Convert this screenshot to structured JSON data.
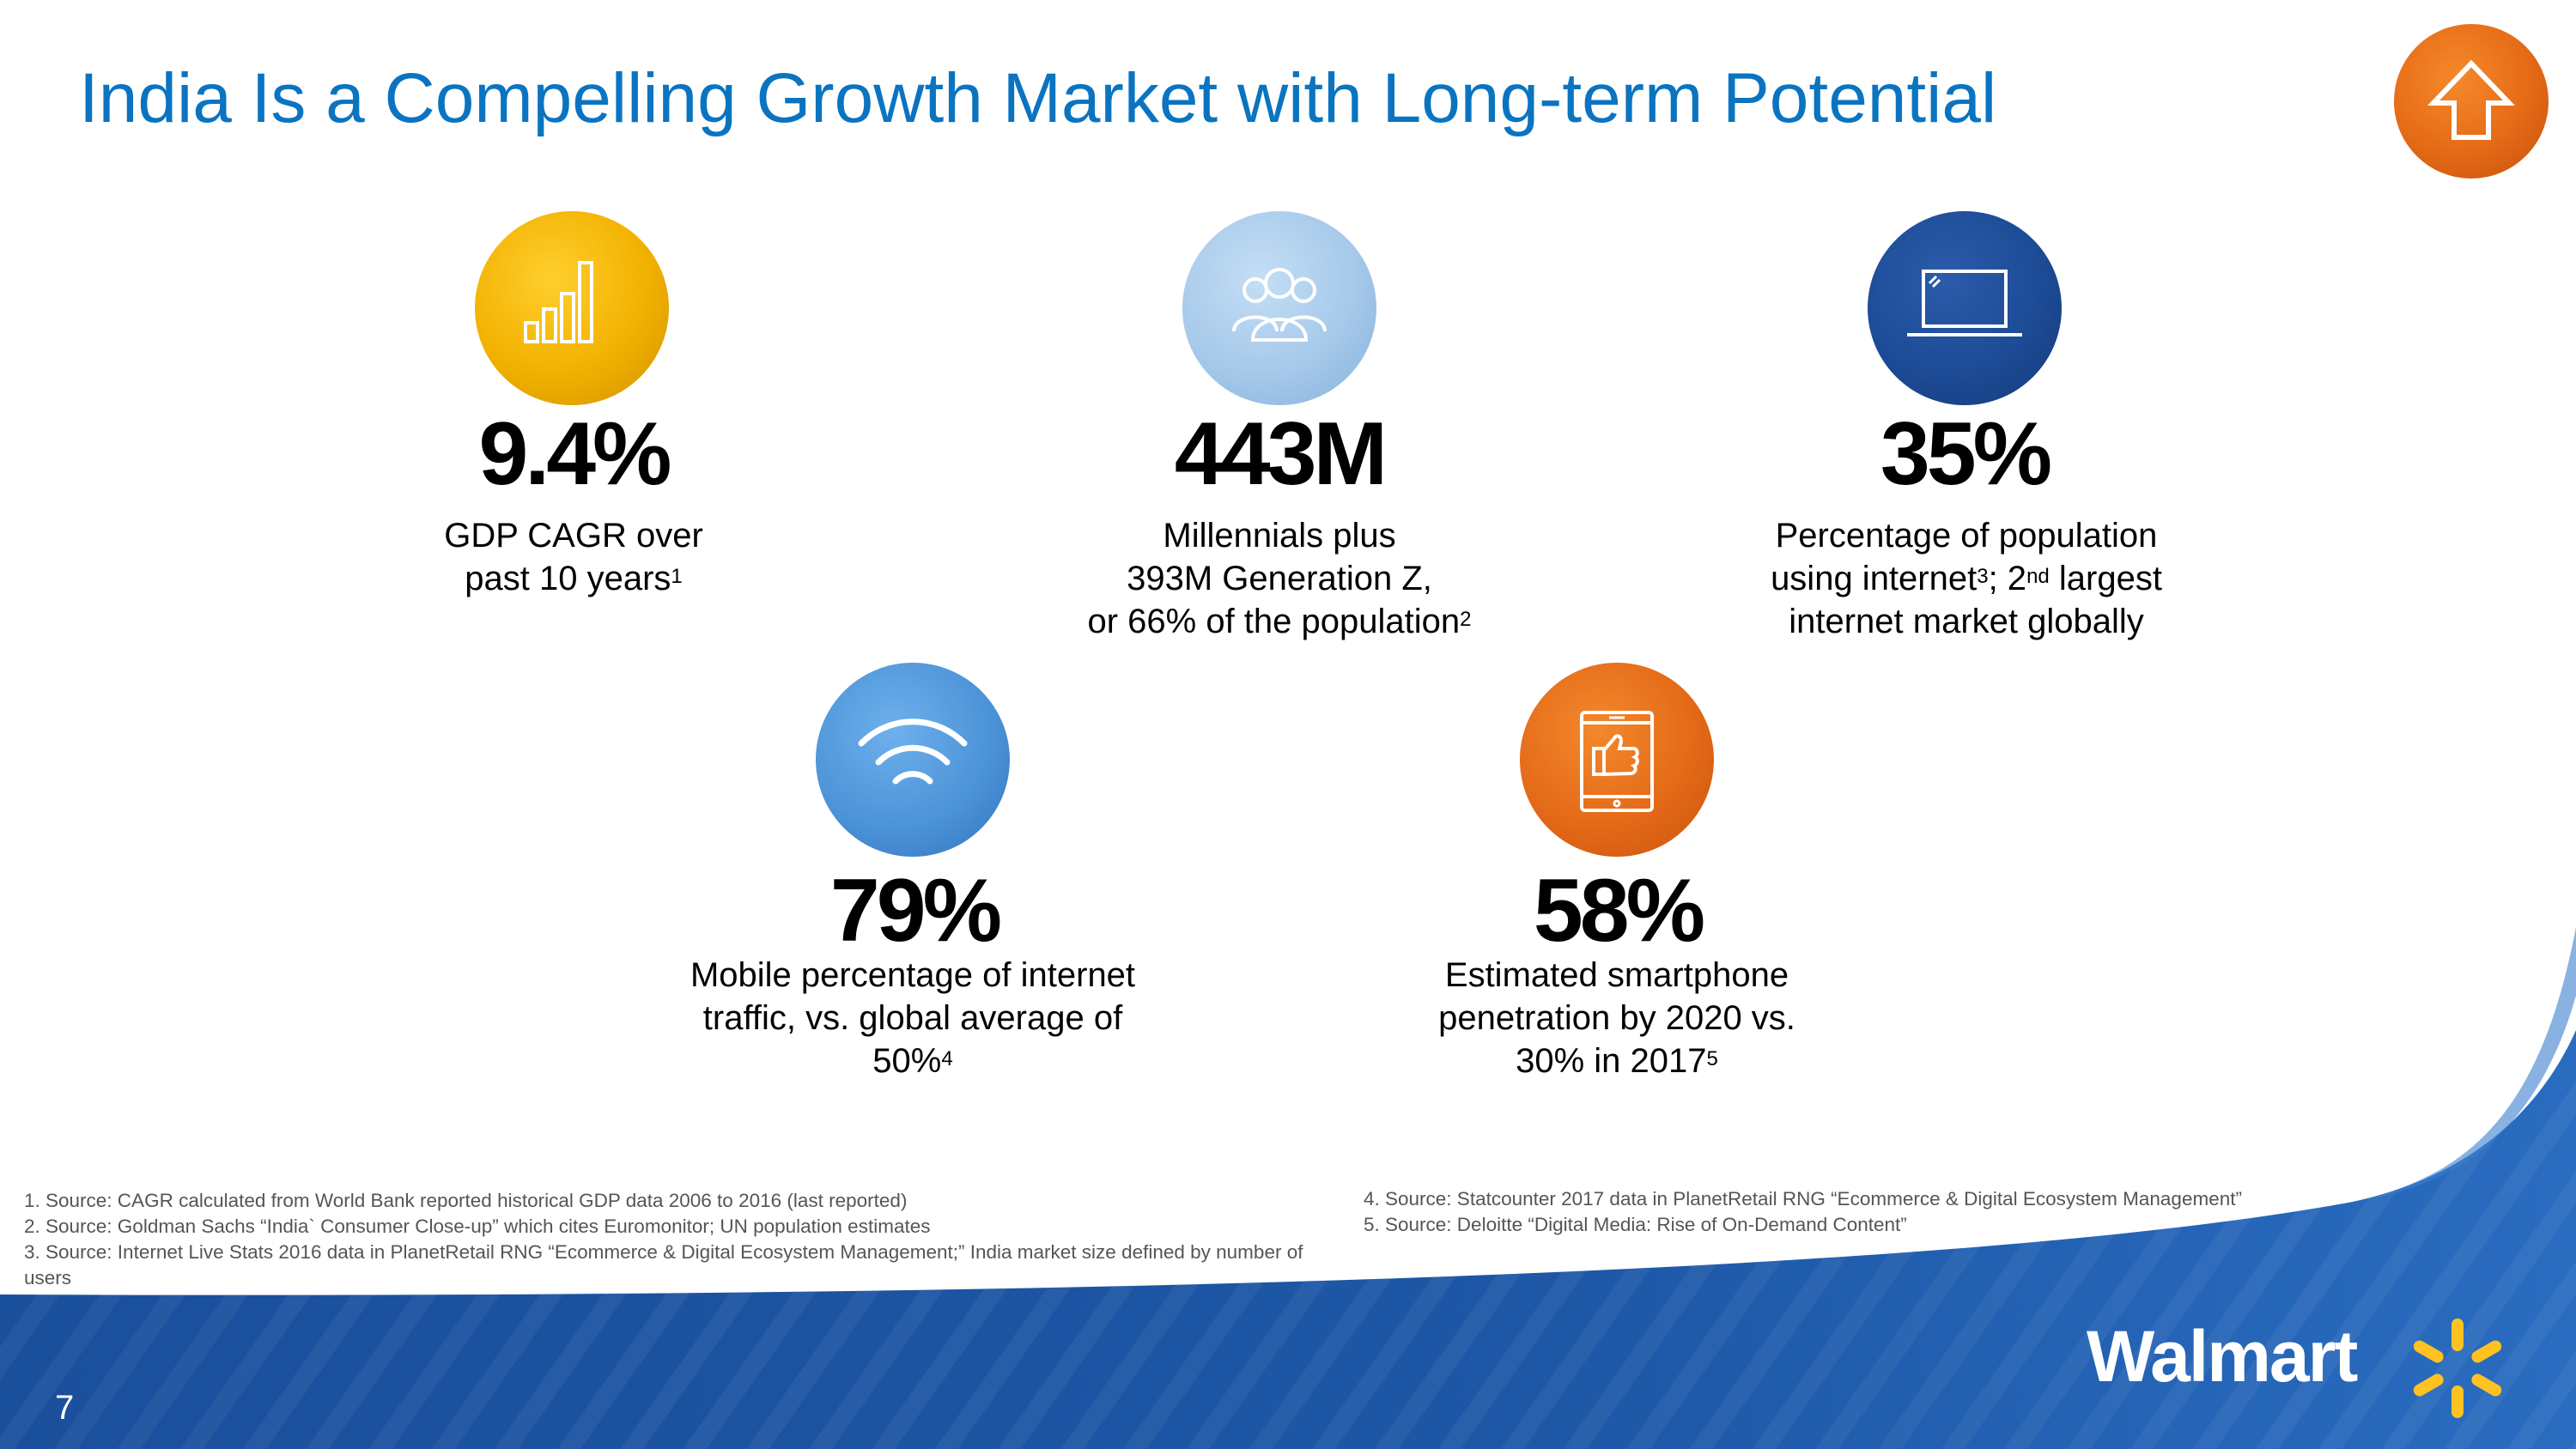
{
  "title": "India Is a Compelling Growth Market with Long-term Potential",
  "page_number": "7",
  "brand": "Walmart",
  "colors": {
    "title_blue": "#0a74c1",
    "walmart_blue": "#1a4f9c",
    "spark_yellow": "#ffc220",
    "accent_orange": "#e56a16"
  },
  "icons": {
    "up_button": "arrow-up-icon",
    "gdp": "bar-chart-icon",
    "millennials": "people-group-icon",
    "internet": "laptop-icon",
    "mobile": "wifi-icon",
    "smartphone": "smartphone-thumbs-up-icon"
  },
  "stats": {
    "gdp": {
      "value": "9.4%",
      "line1": "GDP CAGR over",
      "line2": "past 10 years",
      "sup": "1"
    },
    "millennials": {
      "value": "443M",
      "line1": "Millennials plus",
      "line2": "393M Generation Z,",
      "line3": "or 66% of the population",
      "sup": "2"
    },
    "internet": {
      "value": "35%",
      "line1": "Percentage of population",
      "line2a": "using internet",
      "sup_a": "3",
      "line2b": "; 2",
      "sup_b": "nd",
      "line2c": " largest",
      "line3": "internet market globally"
    },
    "mobile": {
      "value": "79%",
      "line1": "Mobile percentage of internet",
      "line2": "traffic, vs. global average of",
      "line3": "50%",
      "sup": "4"
    },
    "smartphone": {
      "value": "58%",
      "line1": "Estimated smartphone",
      "line2": "penetration by 2020 vs.",
      "line3": "30% in 2017",
      "sup": "5"
    }
  },
  "footnotes": {
    "left": [
      "1. Source: CAGR calculated from World Bank reported historical GDP data 2006 to 2016 (last reported)",
      "2. Source: Goldman Sachs “India` Consumer Close-up” which cites Euromonitor; UN population estimates",
      "3. Source: Internet Live Stats 2016 data in PlanetRetail RNG “Ecommerce & Digital Ecosystem Management;” India market size defined by number of users"
    ],
    "right": [
      "4. Source: Statcounter 2017 data in PlanetRetail RNG “Ecommerce & Digital Ecosystem Management”",
      "5. Source: Deloitte “Digital Media: Rise of On-Demand Content”"
    ]
  }
}
